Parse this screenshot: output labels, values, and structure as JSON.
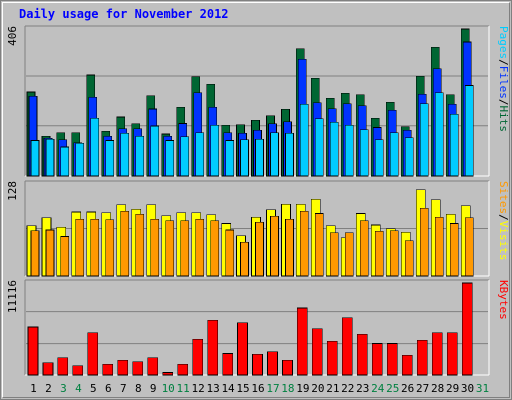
{
  "title": "Daily usage for November 2012",
  "colors": {
    "background": "#c0c0c0",
    "hits": "#006633",
    "files": "#0033ff",
    "pages": "#00ccff",
    "visits": "#ffff00",
    "sites": "#ff9900",
    "kbytes": "#ff0000",
    "weekday_label": "#000000",
    "weekend_label": "#008040",
    "gridline": "#808080"
  },
  "chart_data": [
    {
      "type": "bar",
      "title": "Daily usage for November 2012",
      "ymax_label": "406",
      "ylim": [
        0,
        406
      ],
      "legend": [
        {
          "label": "Hits",
          "color": "#006633"
        },
        {
          "label": "/",
          "color": "#000000"
        },
        {
          "label": "Files",
          "color": "#0033ff"
        },
        {
          "label": "/",
          "color": "#000000"
        },
        {
          "label": "Pages",
          "color": "#00ccff"
        }
      ],
      "categories": [
        "1",
        "2",
        "3",
        "4",
        "5",
        "6",
        "7",
        "8",
        "9",
        "10",
        "11",
        "12",
        "13",
        "14",
        "15",
        "16",
        "17",
        "18",
        "19",
        "20",
        "21",
        "22",
        "23",
        "24",
        "25",
        "26",
        "27",
        "28",
        "29",
        "30",
        "31"
      ],
      "series": [
        {
          "name": "Hits",
          "values": [
            232,
            110,
            120,
            120,
            279,
            124,
            163,
            144,
            222,
            116,
            190,
            274,
            253,
            140,
            141,
            154,
            166,
            184,
            352,
            270,
            215,
            229,
            224,
            160,
            204,
            136,
            275,
            356,
            224,
            406,
            0
          ]
        },
        {
          "name": "Files",
          "values": [
            220,
            104,
            100,
            92,
            218,
            110,
            130,
            130,
            185,
            110,
            145,
            230,
            190,
            120,
            118,
            126,
            144,
            150,
            322,
            202,
            186,
            200,
            194,
            134,
            182,
            126,
            226,
            296,
            198,
            370,
            0
          ]
        },
        {
          "name": "Pages",
          "values": [
            98,
            102,
            80,
            90,
            160,
            98,
            118,
            110,
            138,
            98,
            108,
            120,
            140,
            98,
            100,
            102,
            120,
            118,
            198,
            158,
            148,
            140,
            128,
            100,
            120,
            106,
            200,
            230,
            170,
            250,
            0
          ]
        }
      ]
    },
    {
      "type": "bar",
      "ymax_label": "128",
      "ylim": [
        0,
        128
      ],
      "legend": [
        {
          "label": "Visits",
          "color": "#ffff00"
        },
        {
          "label": "/",
          "color": "#000000"
        },
        {
          "label": "Sites",
          "color": "#ff9900"
        }
      ],
      "categories": [
        "1",
        "2",
        "3",
        "4",
        "5",
        "6",
        "7",
        "8",
        "9",
        "10",
        "11",
        "12",
        "13",
        "14",
        "15",
        "16",
        "17",
        "18",
        "19",
        "20",
        "21",
        "22",
        "23",
        "24",
        "25",
        "26",
        "27",
        "28",
        "29",
        "30",
        "31"
      ],
      "series": [
        {
          "name": "Visits",
          "values": [
            70,
            81,
            68,
            89,
            89,
            88,
            99,
            93,
            99,
            84,
            88,
            88,
            85,
            73,
            56,
            82,
            92,
            100,
            100,
            107,
            70,
            53,
            87,
            71,
            66,
            61,
            120,
            106,
            86,
            98,
            0
          ]
        },
        {
          "name": "Sites",
          "values": [
            63,
            64,
            55,
            79,
            79,
            78,
            90,
            86,
            79,
            77,
            77,
            79,
            77,
            64,
            47,
            75,
            83,
            79,
            90,
            87,
            60,
            60,
            77,
            62,
            63,
            49,
            94,
            82,
            73,
            81,
            0
          ]
        }
      ]
    },
    {
      "type": "bar",
      "ymax_label": "11116",
      "ylim": [
        0,
        11116
      ],
      "legend": [
        {
          "label": "KBytes",
          "color": "#ff0000"
        }
      ],
      "categories": [
        "1",
        "2",
        "3",
        "4",
        "5",
        "6",
        "7",
        "8",
        "9",
        "10",
        "11",
        "12",
        "13",
        "14",
        "15",
        "16",
        "17",
        "18",
        "19",
        "20",
        "21",
        "22",
        "23",
        "24",
        "25",
        "26",
        "27",
        "28",
        "29",
        "30",
        "31"
      ],
      "series": [
        {
          "name": "KBytes",
          "values": [
            5800,
            1500,
            2100,
            1100,
            5100,
            1300,
            1800,
            1600,
            2100,
            300,
            1300,
            4300,
            6600,
            2600,
            6300,
            2500,
            2800,
            1800,
            8100,
            5600,
            4100,
            6900,
            4900,
            3800,
            3800,
            2400,
            4200,
            5100,
            5100,
            11116,
            0
          ]
        }
      ]
    }
  ],
  "weekend_days": [
    "3",
    "4",
    "10",
    "11",
    "17",
    "18",
    "24",
    "25",
    "31"
  ]
}
